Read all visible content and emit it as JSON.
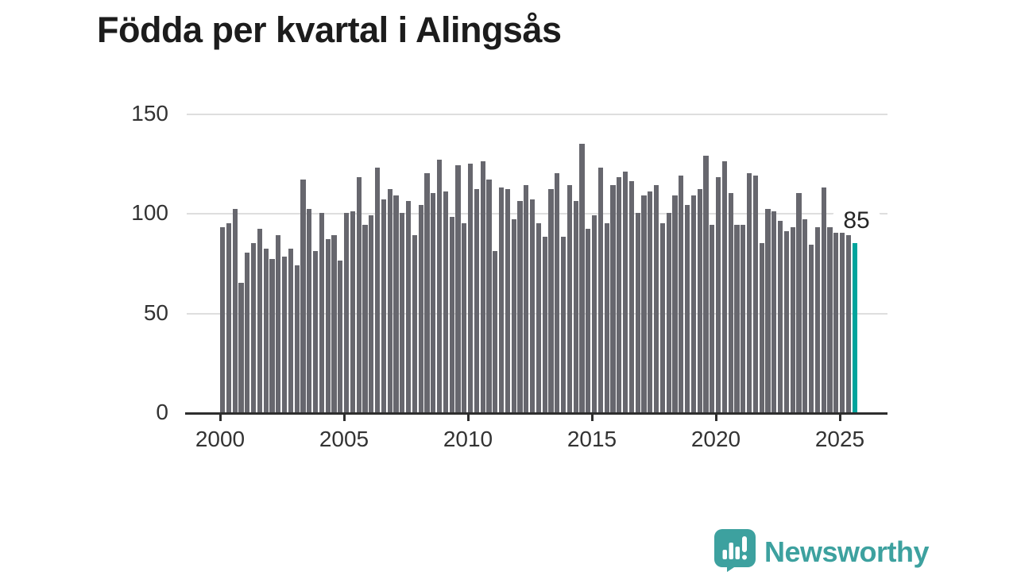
{
  "title": "Födda per kvartal i Alingsås",
  "chart_data": {
    "type": "bar",
    "title": "Födda per kvartal i Alingsås",
    "x_start": "2000-Q1",
    "frequency": "quarterly",
    "x_tick_labels": [
      "2000",
      "2005",
      "2010",
      "2015",
      "2020",
      "2025"
    ],
    "y_ticks": [
      0,
      50,
      100,
      150
    ],
    "ylim": [
      0,
      150
    ],
    "grid": "horizontal",
    "legend": "none",
    "bar_color": "#67676e",
    "highlight_color": "#00a49c",
    "highlight_index": 102,
    "highlight_label": "85",
    "values": [
      93,
      95,
      102,
      65,
      80,
      85,
      92,
      82,
      77,
      89,
      78,
      82,
      74,
      117,
      102,
      81,
      100,
      87,
      89,
      76,
      100,
      101,
      118,
      94,
      99,
      123,
      107,
      112,
      109,
      100,
      106,
      89,
      104,
      120,
      110,
      127,
      111,
      98,
      124,
      95,
      125,
      112,
      126,
      117,
      81,
      113,
      112,
      97,
      106,
      114,
      107,
      95,
      88,
      112,
      120,
      88,
      114,
      106,
      135,
      92,
      99,
      123,
      95,
      114,
      118,
      121,
      116,
      100,
      109,
      111,
      114,
      95,
      100,
      109,
      119,
      104,
      109,
      112,
      129,
      94,
      118,
      126,
      110,
      94,
      94,
      120,
      119,
      85,
      102,
      101,
      96,
      91,
      93,
      110,
      97,
      84,
      93,
      113,
      93,
      90,
      90,
      89,
      85
    ]
  },
  "logo": {
    "text": "Newsworthy",
    "color": "#3da19f"
  }
}
